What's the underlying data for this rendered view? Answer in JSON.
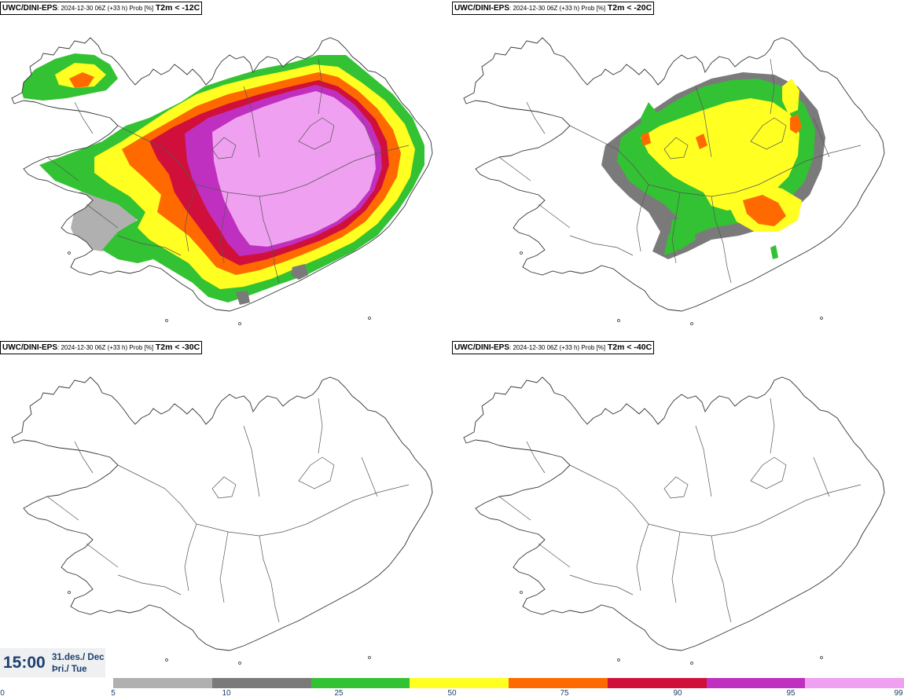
{
  "panels": [
    {
      "model": "UWC/DINI-EPS",
      "info": ": 2024-12-30 06Z (+33 h) Prob [%]",
      "threshold": "T2m < -12C"
    },
    {
      "model": "UWC/DINI-EPS",
      "info": ": 2024-12-30 06Z (+33 h) Prob [%]",
      "threshold": "T2m < -20C"
    },
    {
      "model": "UWC/DINI-EPS",
      "info": ": 2024-12-30 06Z (+33 h) Prob [%]",
      "threshold": "T2m < -30C"
    },
    {
      "model": "UWC/DINI-EPS",
      "info": ": 2024-12-30 06Z (+33 h) Prob [%]",
      "threshold": "T2m < -40C"
    }
  ],
  "time": {
    "hour": "15:00",
    "date_line1": "31.des./ Dec",
    "date_line2": "Þri./ Tue"
  },
  "legend": {
    "ticks": [
      "0",
      "5",
      "10",
      "25",
      "50",
      "75",
      "90",
      "95",
      "99"
    ],
    "colors": [
      "#b0b0b0",
      "#7a7a7a",
      "#33c233",
      "#ffff22",
      "#ff6a00",
      "#d0103a",
      "#c030c0",
      "#f0a0f0"
    ]
  },
  "map_colors": {
    "coast": "#333333",
    "gray_light": "#b0b0b0",
    "gray_dark": "#7a7a7a",
    "green": "#33c233",
    "yellow": "#ffff22",
    "orange": "#ff6a00",
    "red": "#d0103a",
    "purple": "#c030c0",
    "pink": "#f0a0f0"
  }
}
